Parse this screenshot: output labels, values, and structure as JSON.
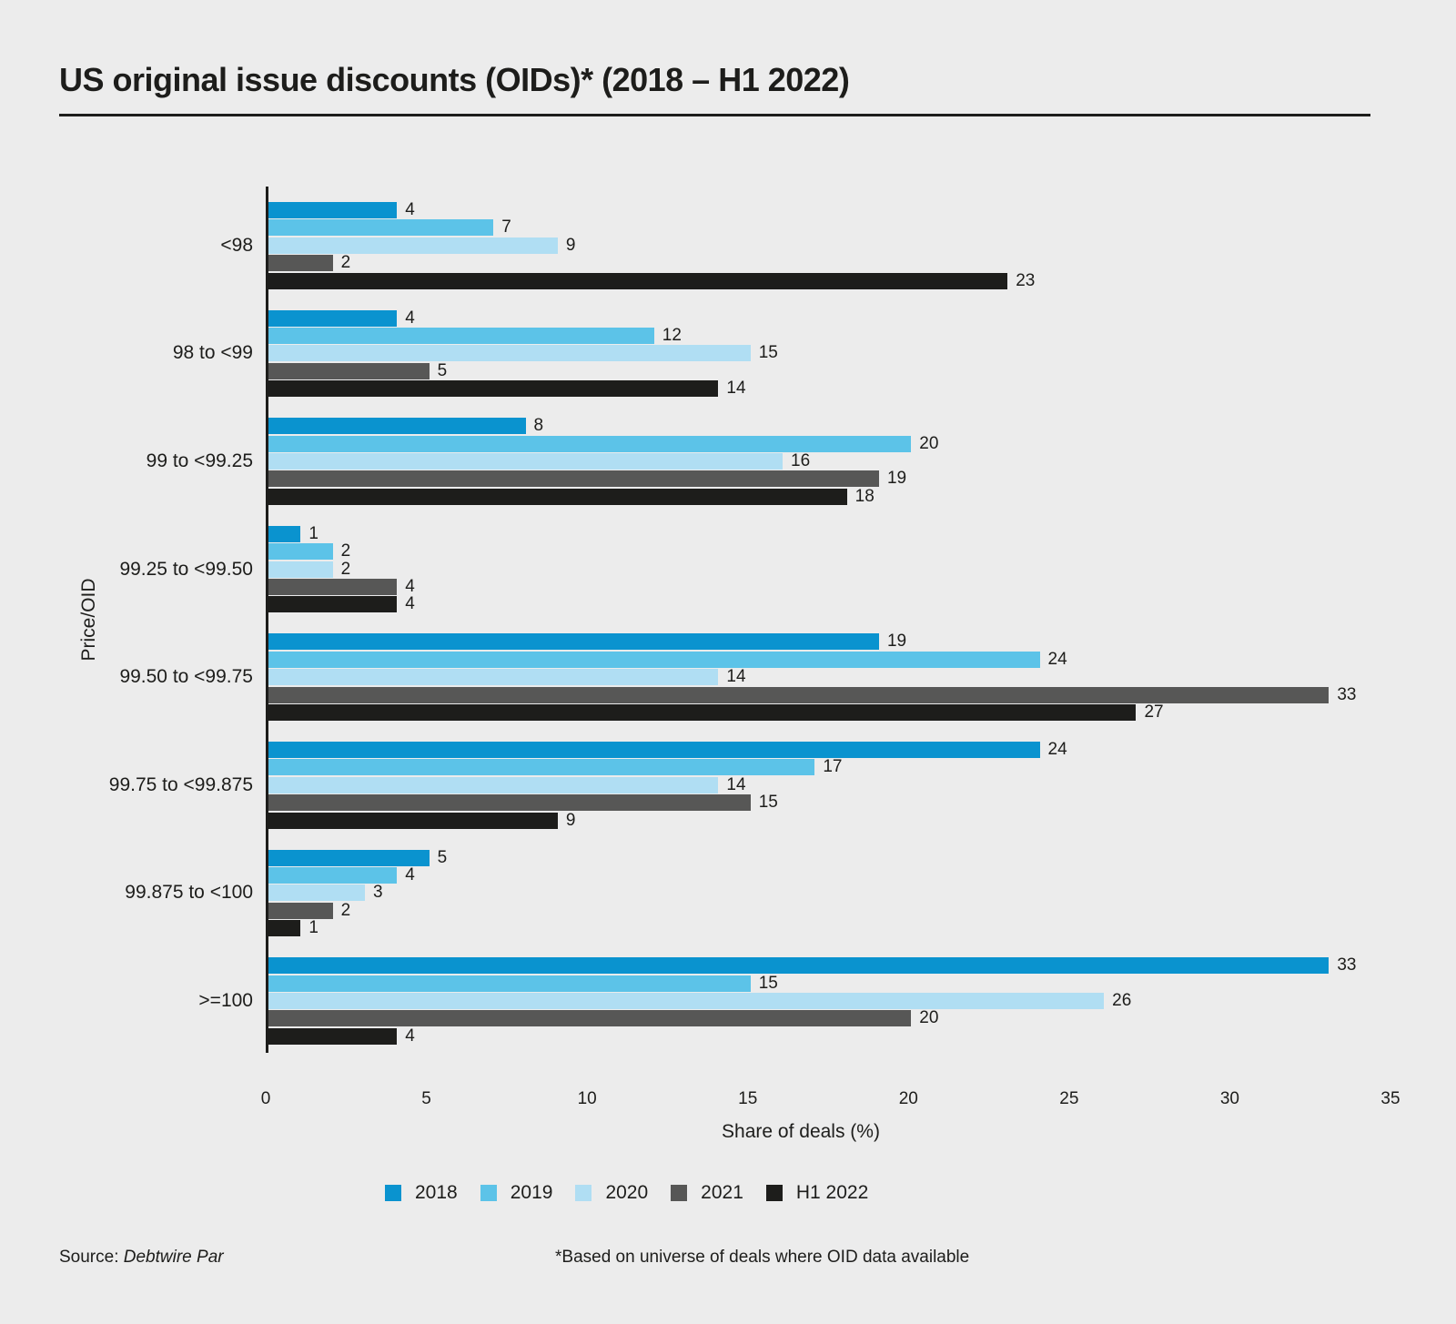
{
  "title": "US original issue discounts (OIDs)* (2018 – H1 2022)",
  "chart_data": {
    "type": "bar",
    "orientation": "horizontal",
    "title": "US original issue discounts (OIDs)* (2018 – H1 2022)",
    "categories": [
      "<98",
      "98 to <99",
      "99 to <99.25",
      "99.25 to <99.50",
      "99.50 to <99.75",
      "99.75 to <99.875",
      "99.875 to <100",
      ">=100"
    ],
    "series": [
      {
        "name": "2018",
        "color": "#0a93cf",
        "values": [
          4,
          4,
          8,
          1,
          19,
          24,
          5,
          33
        ]
      },
      {
        "name": "2019",
        "color": "#5cc3e8",
        "values": [
          7,
          12,
          20,
          2,
          24,
          17,
          4,
          15
        ]
      },
      {
        "name": "2020",
        "color": "#b0def3",
        "values": [
          9,
          15,
          16,
          2,
          14,
          14,
          3,
          26
        ]
      },
      {
        "name": "2021",
        "color": "#575756",
        "values": [
          2,
          5,
          19,
          4,
          33,
          15,
          2,
          20
        ]
      },
      {
        "name": "H1 2022",
        "color": "#1d1d1b",
        "values": [
          23,
          14,
          18,
          4,
          27,
          9,
          1,
          4
        ]
      }
    ],
    "xlabel": "Share of deals (%)",
    "ylabel": "Price/OID",
    "xlim": [
      0,
      35
    ],
    "xticks": [
      0,
      5,
      10,
      15,
      20,
      25,
      30,
      35
    ],
    "grid": false,
    "legend_position": "bottom",
    "value_labels": true,
    "background_color": "#ececec",
    "text_color": "#1d1d1b"
  },
  "footer": {
    "source_prefix": "Source: ",
    "source_name": "Debtwire Par",
    "footnote": "*Based on universe of deals where OID data available"
  }
}
